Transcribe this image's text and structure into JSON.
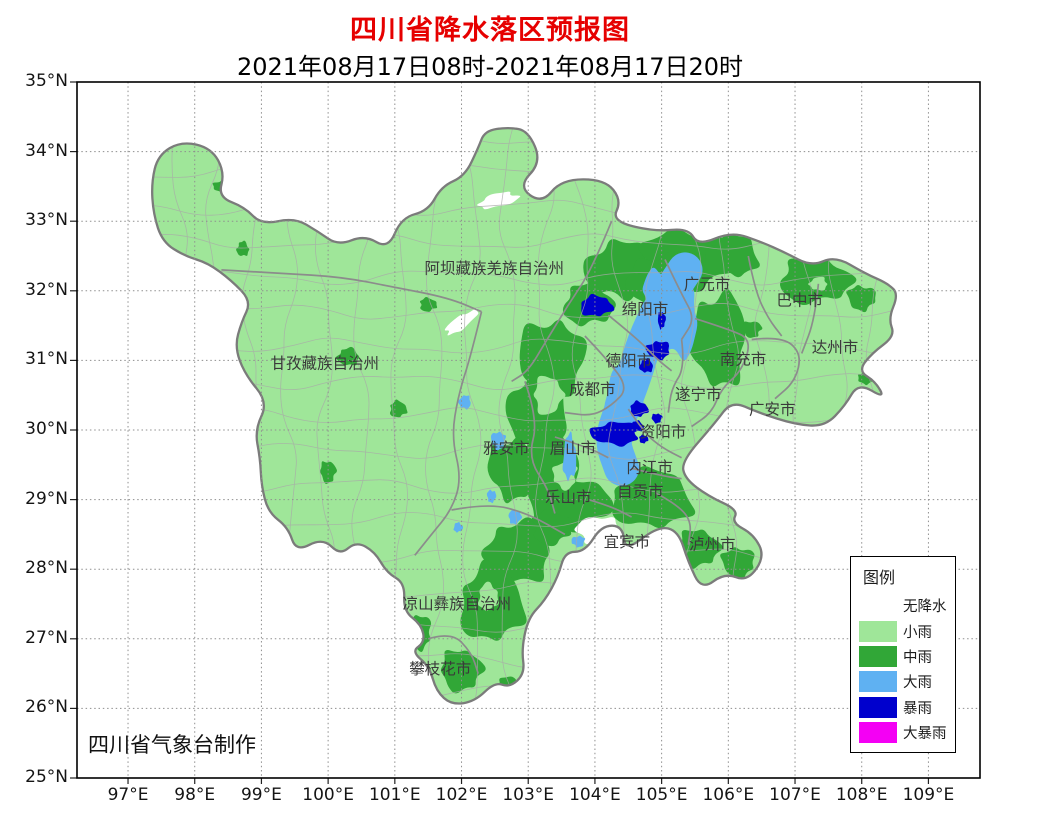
{
  "title": "四川省降水落区预报图",
  "subtitle": "2021年08月17日08时-2021年08月17日20时",
  "credit": "四川省气象台制作",
  "axes": {
    "lat_labels": [
      "35°N",
      "34°N",
      "33°N",
      "32°N",
      "31°N",
      "30°N",
      "29°N",
      "28°N",
      "27°N",
      "26°N",
      "25°N"
    ],
    "lon_labels": [
      "97°E",
      "98°E",
      "99°E",
      "100°E",
      "101°E",
      "102°E",
      "103°E",
      "104°E",
      "105°E",
      "106°E",
      "107°E",
      "108°E",
      "109°E"
    ]
  },
  "legend": {
    "title": "图例",
    "items": [
      {
        "label": "无降水",
        "color": ""
      },
      {
        "label": "小雨",
        "color": "#9fe699"
      },
      {
        "label": "中雨",
        "color": "#31a737"
      },
      {
        "label": "大雨",
        "color": "#5fb1f2"
      },
      {
        "label": "暴雨",
        "color": "#0000cd"
      },
      {
        "label": "大暴雨",
        "color": "#f400f4"
      }
    ]
  },
  "colors": {
    "title": "#e60000",
    "light_rain": "#9fe699",
    "mid_rain": "#31a737",
    "heavy_rain": "#5fb1f2",
    "storm": "#0000cd",
    "heavy_storm": "#f400f4",
    "no_rain": "#ffffff",
    "outline": "#7b7b7b",
    "boundary": "#8c8c8c",
    "county_line": "#a9a9a9",
    "grid": "#8f8f8f"
  },
  "map": {
    "region_labels": [
      {
        "name": "阿坝藏族羌族自治州",
        "lon": 102.49,
        "lat": 32.33
      },
      {
        "name": "甘孜藏族自治州",
        "lon": 99.95,
        "lat": 30.96
      },
      {
        "name": "凉山彝族自治州",
        "lon": 101.93,
        "lat": 27.51
      },
      {
        "name": "攀枝花市",
        "lon": 101.68,
        "lat": 26.57
      },
      {
        "name": "广元市",
        "lon": 105.68,
        "lat": 32.1
      },
      {
        "name": "绵阳市",
        "lon": 104.75,
        "lat": 31.74
      },
      {
        "name": "巴中市",
        "lon": 107.07,
        "lat": 31.87
      },
      {
        "name": "达州市",
        "lon": 107.6,
        "lat": 31.19
      },
      {
        "name": "南充市",
        "lon": 106.22,
        "lat": 31.02
      },
      {
        "name": "德阳市",
        "lon": 104.51,
        "lat": 31.0
      },
      {
        "name": "成都市",
        "lon": 103.96,
        "lat": 30.59
      },
      {
        "name": "遂宁市",
        "lon": 105.55,
        "lat": 30.52
      },
      {
        "name": "广安市",
        "lon": 106.66,
        "lat": 30.3
      },
      {
        "name": "雅安市",
        "lon": 102.67,
        "lat": 29.74
      },
      {
        "name": "眉山市",
        "lon": 103.67,
        "lat": 29.74
      },
      {
        "name": "资阳市",
        "lon": 105.02,
        "lat": 29.98
      },
      {
        "name": "内江市",
        "lon": 104.82,
        "lat": 29.47
      },
      {
        "name": "乐山市",
        "lon": 103.6,
        "lat": 29.04
      },
      {
        "name": "自贡市",
        "lon": 104.68,
        "lat": 29.12
      },
      {
        "name": "宜宾市",
        "lon": 104.48,
        "lat": 28.4
      },
      {
        "name": "泸州市",
        "lon": 105.76,
        "lat": 28.36
      }
    ]
  }
}
